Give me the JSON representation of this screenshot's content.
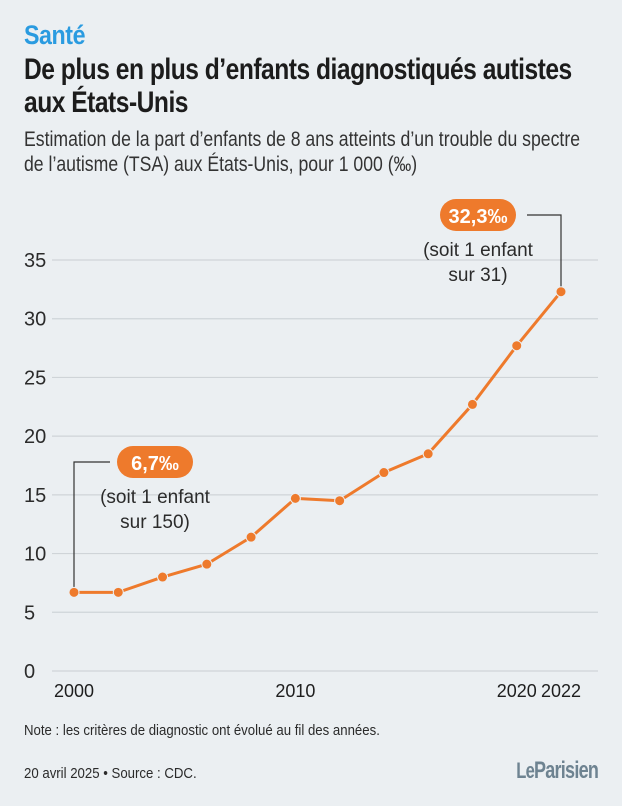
{
  "header": {
    "kicker": "Santé",
    "title_line1": "De plus en plus d’enfants diagnostiqués autistes",
    "title_line2": "aux États-Unis",
    "subtitle_line1": "Estimation de la part d’enfants de 8 ans atteints d’un trouble du spectre",
    "subtitle_line2": "de l’autisme (TSA) aux États-Unis, pour 1 000  (‰)"
  },
  "colors": {
    "kicker": "#2a9be0",
    "series": "#ee7a2c",
    "grid": "#cfd4d8",
    "leader": "#333333",
    "background": "#ebeff2",
    "logo": "#6e8391"
  },
  "chart_data": {
    "type": "line",
    "title": "De plus en plus d’enfants diagnostiqués autistes aux États-Unis",
    "xlabel": "",
    "ylabel": "pour 1 000 (‰)",
    "x": [
      2000,
      2002,
      2004,
      2006,
      2008,
      2010,
      2012,
      2014,
      2016,
      2018,
      2020,
      2022
    ],
    "series": [
      {
        "name": "Enfants de 8 ans atteints de TSA (‰)",
        "values": [
          6.7,
          6.7,
          8.0,
          9.1,
          11.4,
          14.7,
          14.5,
          16.9,
          18.5,
          22.7,
          27.7,
          32.3
        ]
      }
    ],
    "xlim": [
      2000,
      2022
    ],
    "ylim": [
      0,
      35
    ],
    "yticks": [
      0,
      5,
      10,
      15,
      20,
      25,
      30,
      35
    ],
    "xticks": [
      2000,
      2010,
      2020,
      2022
    ],
    "grid": true,
    "legend": "none",
    "annotations": [
      {
        "x": 2000,
        "y": 6.7,
        "value_label": "6,7‰",
        "line1": "(soit 1 enfant",
        "line2": "sur 150)"
      },
      {
        "x": 2022,
        "y": 32.3,
        "value_label": "32,3‰",
        "line1": "(soit 1 enfant",
        "line2": "sur 31)"
      }
    ]
  },
  "footer": {
    "note": "Note : les critères de diagnostic ont évolué au fil des années.",
    "date_source": "20 avril 2025 • Source : CDC.",
    "logo_le": "Le",
    "logo_parisien": "Parisien"
  }
}
